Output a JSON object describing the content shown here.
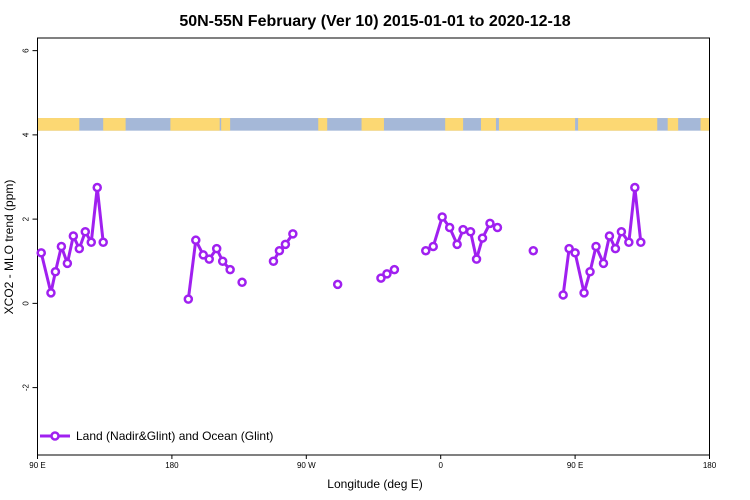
{
  "chart_data": {
    "type": "line",
    "title": "50N-55N February (Ver 10)   2015-01-01 to 2020-12-18",
    "xlabel": "Longitude (deg E)",
    "ylabel": "XCO2 - MLO trend (ppm)",
    "x_range": [
      90,
      540
    ],
    "ylim": [
      -3.6,
      6.3
    ],
    "x_ticks": [
      {
        "value": 90,
        "label": "90 E"
      },
      {
        "value": 180,
        "label": "180"
      },
      {
        "value": 270,
        "label": "90 W"
      },
      {
        "value": 360,
        "label": "0"
      },
      {
        "value": 450,
        "label": "90 E"
      },
      {
        "value": 540,
        "label": "180"
      }
    ],
    "y_ticks": [
      {
        "value": 6,
        "label": "6"
      },
      {
        "value": 4,
        "label": "4"
      },
      {
        "value": 2,
        "label": "2"
      },
      {
        "value": 0,
        "label": "0"
      },
      {
        "value": -2,
        "label": "-2"
      }
    ],
    "surface_band": {
      "y_range": [
        4.1,
        4.4
      ],
      "land_color": "#fcd873",
      "ocean_color": "#a5b8d8",
      "land_spans": [
        [
          90,
          118
        ],
        [
          134,
          149
        ],
        [
          179,
          212
        ],
        [
          213,
          219
        ],
        [
          278,
          284
        ],
        [
          307,
          322
        ],
        [
          363,
          375
        ],
        [
          387,
          397
        ],
        [
          399,
          450
        ],
        [
          452,
          505
        ],
        [
          512,
          519
        ],
        [
          534,
          540
        ]
      ]
    },
    "series": [
      {
        "name": "Land (Nadir&Glint) and Ocean (Glint)",
        "color": "#a020f0",
        "segments": [
          [
            [
              92.5,
              1.2
            ],
            [
              99,
              0.25
            ],
            [
              102,
              0.75
            ],
            [
              106,
              1.35
            ],
            [
              110,
              0.95
            ],
            [
              114,
              1.6
            ],
            [
              118,
              1.3
            ],
            [
              122,
              1.7
            ],
            [
              126,
              1.45
            ],
            [
              130,
              2.75
            ],
            [
              134,
              1.45
            ]
          ],
          [
            [
              191,
              0.1
            ],
            [
              196,
              1.5
            ],
            [
              201,
              1.15
            ],
            [
              205,
              1.05
            ],
            [
              210,
              1.3
            ],
            [
              214,
              1.0
            ],
            [
              219,
              0.8
            ]
          ],
          [
            [
              227,
              0.5
            ]
          ],
          [
            [
              248,
              1.0
            ],
            [
              252,
              1.25
            ],
            [
              256,
              1.4
            ],
            [
              261,
              1.65
            ]
          ],
          [
            [
              291,
              0.45
            ]
          ],
          [
            [
              320,
              0.6
            ],
            [
              324,
              0.7
            ],
            [
              329,
              0.8
            ]
          ],
          [
            [
              350,
              1.25
            ],
            [
              355,
              1.35
            ],
            [
              361,
              2.05
            ],
            [
              366,
              1.8
            ],
            [
              371,
              1.4
            ],
            [
              375,
              1.75
            ],
            [
              380,
              1.7
            ],
            [
              384,
              1.05
            ],
            [
              388,
              1.55
            ],
            [
              393,
              1.9
            ],
            [
              398,
              1.8
            ]
          ],
          [
            [
              422,
              1.25
            ]
          ],
          [
            [
              442,
              0.2
            ],
            [
              446,
              1.3
            ],
            [
              450,
              1.2
            ],
            [
              456,
              0.25
            ],
            [
              460,
              0.75
            ],
            [
              464,
              1.35
            ],
            [
              469,
              0.95
            ],
            [
              473,
              1.6
            ],
            [
              477,
              1.3
            ],
            [
              481,
              1.7
            ],
            [
              486,
              1.45
            ],
            [
              490,
              2.75
            ],
            [
              494,
              1.45
            ]
          ]
        ]
      }
    ],
    "legend": {
      "position": "bottom-left",
      "entries": [
        "Land (Nadir&Glint) and Ocean (Glint)"
      ]
    },
    "grid": false
  }
}
